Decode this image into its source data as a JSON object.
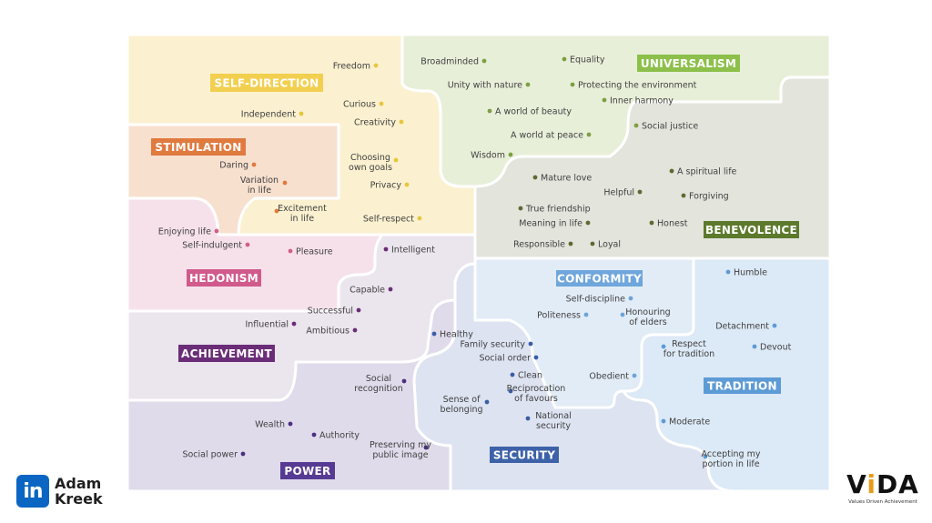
{
  "regions": [
    {
      "id": "self-direction",
      "label": "SELF-DIRECTION",
      "fill": "#fbf1d0",
      "badge": "#f2cf4f",
      "dot": "#e8c63c",
      "values": [
        "Freedom",
        "Curious",
        "Independent",
        "Creativity",
        "Choosing own goals",
        "Privacy",
        "Self-respect"
      ]
    },
    {
      "id": "universalism",
      "label": "UNIVERSALISM",
      "fill": "#e8efd9",
      "badge": "#8cc04a",
      "dot": "#7da043",
      "values": [
        "Broadminded",
        "Equality",
        "Unity with nature",
        "Protecting the environment",
        "Inner harmony",
        "A world of beauty",
        "Social justice",
        "A world at peace",
        "Wisdom"
      ]
    },
    {
      "id": "stimulation",
      "label": "STIMULATION",
      "fill": "#f8e0cf",
      "badge": "#e07a3f",
      "dot": "#e07a3f",
      "values": [
        "Daring",
        "Variation in life",
        "Excitement in life"
      ]
    },
    {
      "id": "benevolence",
      "label": "BENEVOLENCE",
      "fill": "#e3e4dc",
      "badge": "#5d7a2c",
      "dot": "#5d6a32",
      "values": [
        "Mature love",
        "A spiritual life",
        "Helpful",
        "Forgiving",
        "True friendship",
        "Meaning in life",
        "Honest",
        "Responsible",
        "Loyal"
      ]
    },
    {
      "id": "hedonism",
      "label": "HEDONISM",
      "fill": "#f6e1eb",
      "badge": "#d15a8c",
      "dot": "#d35f86",
      "values": [
        "Enjoying life",
        "Self-indulgent",
        "Pleasure"
      ]
    },
    {
      "id": "conformity",
      "label": "CONFORMITY",
      "fill": "#e2ecf7",
      "badge": "#6fa6db",
      "dot": "#6ea3d8",
      "values": [
        "Self-discipline",
        "Politeness",
        "Honouring of elders",
        "Obedient"
      ]
    },
    {
      "id": "tradition",
      "label": "TRADITION",
      "fill": "#dce9f6",
      "badge": "#5d9bd6",
      "dot": "#5d9bd6",
      "values": [
        "Humble",
        "Detachment",
        "Respect for tradition",
        "Devout",
        "Moderate",
        "Accepting my portion in life"
      ]
    },
    {
      "id": "achievement",
      "label": "ACHIEVEMENT",
      "fill": "#ebe5ee",
      "badge": "#6b2d78",
      "dot": "#6b2d78",
      "values": [
        "Intelligent",
        "Capable",
        "Successful",
        "Influential",
        "Ambitious"
      ]
    },
    {
      "id": "security",
      "label": "SECURITY",
      "fill": "#dde3f1",
      "badge": "#3d62a8",
      "dot": "#3a5ea6",
      "values": [
        "Healthy",
        "Family security",
        "Social order",
        "Clean",
        "Reciprocation of favours",
        "Sense of belonging",
        "National security"
      ]
    },
    {
      "id": "power",
      "label": "POWER",
      "fill": "#e0dbeb",
      "badge": "#573a93",
      "dot": "#4c2f80",
      "values": [
        "Social recognition",
        "Wealth",
        "Authority",
        "Social power",
        "Preserving my public image"
      ]
    }
  ],
  "brand_left": {
    "linkedin_glyph": "in",
    "name_line1": "Adam",
    "name_line2": "Kreek"
  },
  "brand_right": {
    "word_pre": "V",
    "word_dot": "i",
    "word_post": "DA",
    "tagline": "Values Driven Achievement"
  }
}
